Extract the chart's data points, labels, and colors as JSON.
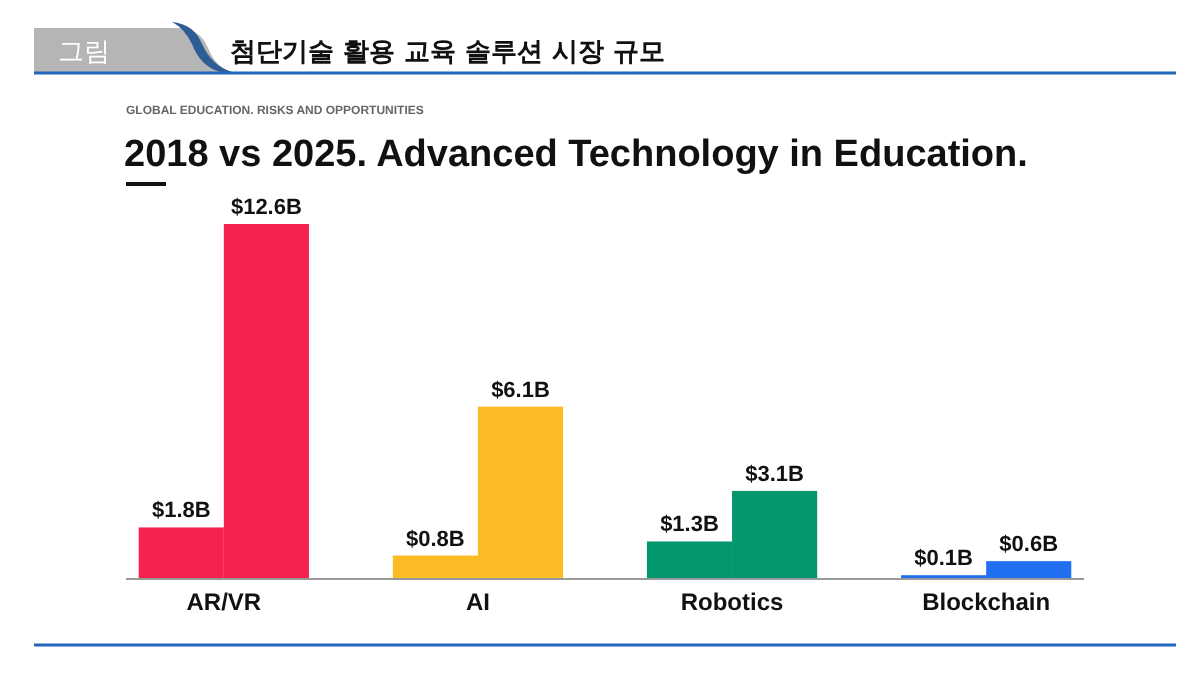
{
  "chart_data": {
    "type": "bar",
    "title": "첨단기술 활용 교육 솔루션 시장 규모",
    "subtitle": "2018 vs 2025. Advanced Technology in Education.",
    "annotations": [
      "그림",
      "GLOBAL EDUCATION. RISKS AND OPPORTUNITIES"
    ],
    "categories": [
      "AR/VR",
      "AI",
      "Robotics",
      "Blockchain"
    ],
    "series": [
      {
        "colors": [
          "#f72150",
          "#fbbb24",
          "#039770",
          "#1f6ff0"
        ],
        "values": [
          1.8,
          0.8,
          1.3,
          0.1
        ],
        "value_labels": [
          "$1.8B",
          "$0.8B",
          "$1.3B",
          "$0.1B"
        ]
      },
      {
        "colors": [
          "#f72150",
          "#fbbb24",
          "#039770",
          "#1f6ff0"
        ],
        "values": [
          12.6,
          6.1,
          3.1,
          0.6
        ],
        "value_labels": [
          "$12.6B",
          "$6.1B",
          "$3.1B",
          "$0.6B"
        ]
      }
    ]
  }
}
